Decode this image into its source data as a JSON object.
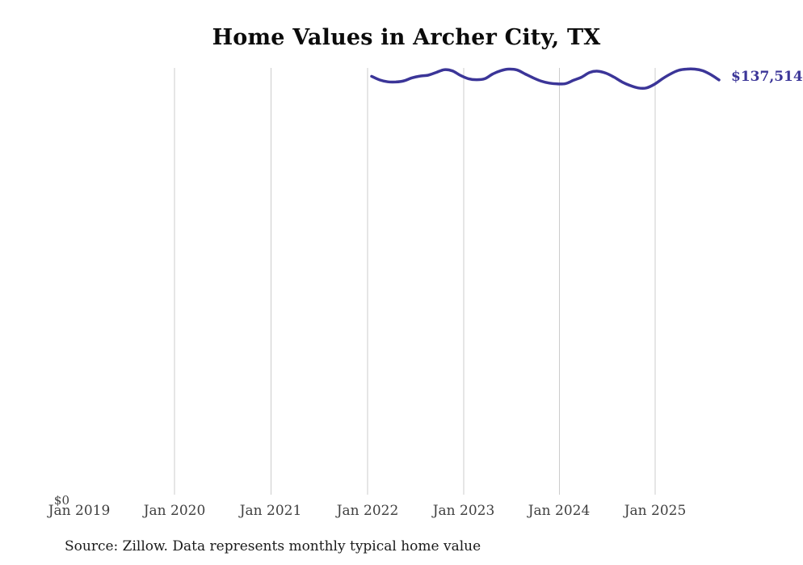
{
  "title": "Home Values in Archer City, TX",
  "source_note": "Source: Zillow. Data represents monthly typical home value",
  "y_axis": {
    "zero_label": "$0"
  },
  "x_ticks": [
    "Jan 2019",
    "Jan 2020",
    "Jan 2021",
    "Jan 2022",
    "Jan 2023",
    "Jan 2024",
    "Jan 2025"
  ],
  "end_label": "$137,514",
  "colors": {
    "line": "#3b3598",
    "end_label_text": "#3b3598",
    "grid": "#cccccc",
    "tick_text": "#3f3f3f",
    "title_text": "#0b0b0b",
    "source_text": "#1a1a1a",
    "background": "#ffffff"
  },
  "chart_data": {
    "type": "line",
    "title": "Home Values in Archer City, TX",
    "xlabel": "",
    "ylabel": "",
    "legend_position": "none",
    "grid": "vertical-only",
    "x_axis_tick_labels": [
      "Jan 2019",
      "Jan 2020",
      "Jan 2021",
      "Jan 2022",
      "Jan 2023",
      "Jan 2024",
      "Jan 2025"
    ],
    "ylim": [
      0,
      141500
    ],
    "end_point_label": "$137,514",
    "series_name": "Typical home value (monthly)",
    "x": [
      "Feb 2022",
      "Mar 2022",
      "Apr 2022",
      "May 2022",
      "Jun 2022",
      "Jul 2022",
      "Aug 2022",
      "Sep 2022",
      "Oct 2022",
      "Nov 2022",
      "Dec 2022",
      "Jan 2023",
      "Feb 2023",
      "Mar 2023",
      "Apr 2023",
      "May 2023",
      "Jun 2023",
      "Jul 2023",
      "Aug 2023",
      "Sep 2023",
      "Oct 2023",
      "Nov 2023",
      "Dec 2023",
      "Jan 2024",
      "Feb 2024",
      "Mar 2024",
      "Apr 2024",
      "May 2024",
      "Jun 2024",
      "Jul 2024",
      "Aug 2024",
      "Sep 2024",
      "Oct 2024",
      "Nov 2024",
      "Dec 2024",
      "Jan 2025",
      "Feb 2025",
      "Mar 2025",
      "Apr 2025",
      "May 2025",
      "Jun 2025",
      "Jul 2025",
      "Aug 2025",
      "Sep 2025"
    ],
    "values": [
      138700,
      137500,
      136900,
      136850,
      137200,
      138200,
      138800,
      139100,
      140000,
      140900,
      140500,
      139000,
      137900,
      137600,
      137900,
      139500,
      140600,
      141100,
      140800,
      139500,
      138200,
      137100,
      136450,
      136200,
      136300,
      137400,
      138450,
      140000,
      140400,
      139750,
      138450,
      136850,
      135650,
      134850,
      134850,
      136050,
      137900,
      139500,
      140700,
      141100,
      141100,
      140550,
      139250,
      137514
    ]
  }
}
